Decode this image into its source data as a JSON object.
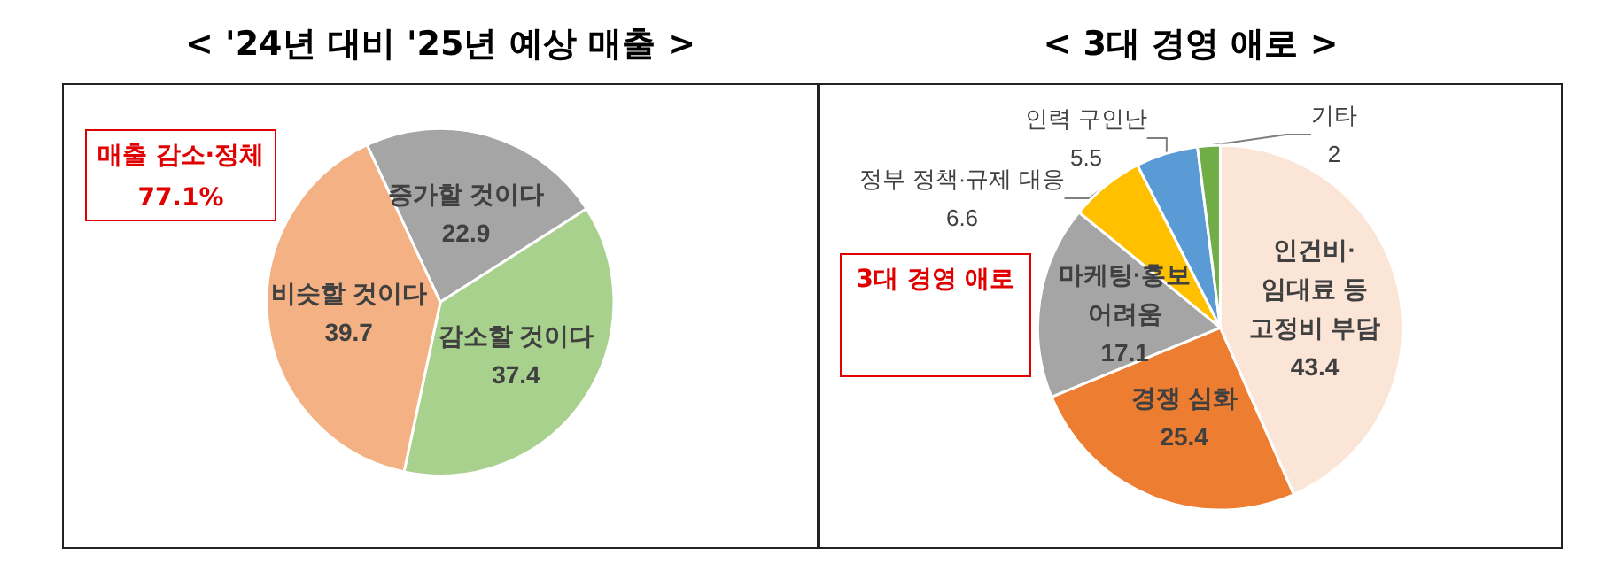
{
  "chart_data": [
    {
      "type": "pie",
      "title": "< '24년 대비 '25년 예상 매출 >",
      "categories": [
        "증가할 것이다",
        "감소할 것이다",
        "비슷할 것이다"
      ],
      "values": [
        22.9,
        37.4,
        39.7
      ],
      "colors": [
        "#a5a5a5",
        "#a9d18e",
        "#f4b183"
      ],
      "data_labels": true,
      "annotations": [
        "매출 감소·정체\n77.1%"
      ]
    },
    {
      "type": "pie",
      "title": "< 3대 경영 애로 >",
      "categories": [
        "인건비·\n임대료 등\n고정비 부담",
        "경쟁 심화",
        "마케팅·홍보\n어려움",
        "정부 정책·규제 대응",
        "인력 구인난",
        "기타"
      ],
      "values": [
        43.4,
        25.4,
        17.1,
        6.6,
        5.5,
        2
      ],
      "colors": [
        "#fbe5d6",
        "#ed7d31",
        "#a5a5a5",
        "#ffc000",
        "#5b9bd5",
        "#70ad47"
      ],
      "data_labels": true,
      "annotations": [
        "3대 경영 애로"
      ]
    }
  ]
}
